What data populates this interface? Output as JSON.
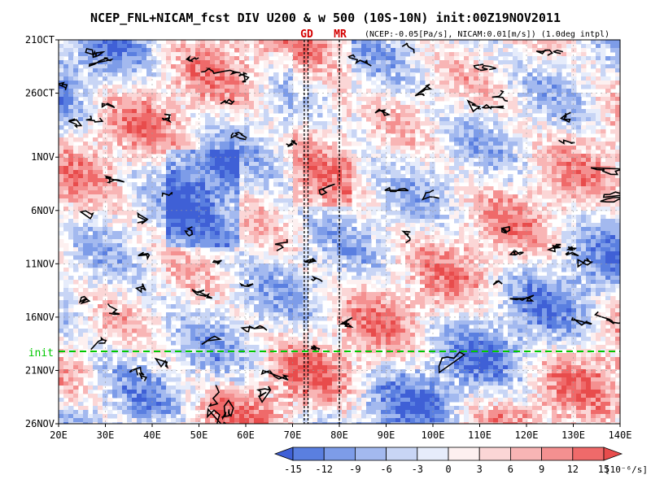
{
  "chart_data": {
    "type": "heatmap",
    "title": "NCEP_FNL+NICAM_fcst DIV U200 & w 500 (10S-10N) init:00Z19NOV2011",
    "subtitle": "(NCEP:-0.05[Pa/s], NICAM:0.01[m/s]) (1.0deg intpl)",
    "markers": [
      "GD",
      "MR"
    ],
    "init_label": "init",
    "x_ticks": [
      "20E",
      "30E",
      "40E",
      "50E",
      "60E",
      "70E",
      "80E",
      "90E",
      "100E",
      "110E",
      "120E",
      "130E",
      "140E"
    ],
    "y_ticks": [
      "21OCT",
      "26OCT",
      "1NOV",
      "6NOV",
      "11NOV",
      "16NOV",
      "21NOV",
      "26NOV"
    ],
    "xlim": [
      20,
      140
    ],
    "ylim": [
      "21OCT2011",
      "26NOV2011"
    ],
    "init_date": "19NOV2011",
    "marker_longitudes": [
      {
        "label": "GD",
        "lons": [
          72.5,
          73.3
        ]
      },
      {
        "label": "MR",
        "lons": [
          80.0
        ]
      }
    ],
    "colorbar": {
      "ticks": [
        "-15",
        "-12",
        "-9",
        "-6",
        "-3",
        "0",
        "3",
        "6",
        "9",
        "12",
        "15"
      ],
      "unit": "[10⁻⁶/s]",
      "colors": [
        "#3f60d6",
        "#5a7fe0",
        "#7d9ce8",
        "#a3b9ef",
        "#c8d5f5",
        "#e6ecfb",
        "#fdf0f0",
        "#fbd6d6",
        "#f8b5b5",
        "#f49090",
        "#ef6a6a",
        "#e84c4c"
      ]
    },
    "colors": {
      "init_line": "#00c800",
      "marker_text": "#d40000",
      "contour": "#000000"
    }
  }
}
